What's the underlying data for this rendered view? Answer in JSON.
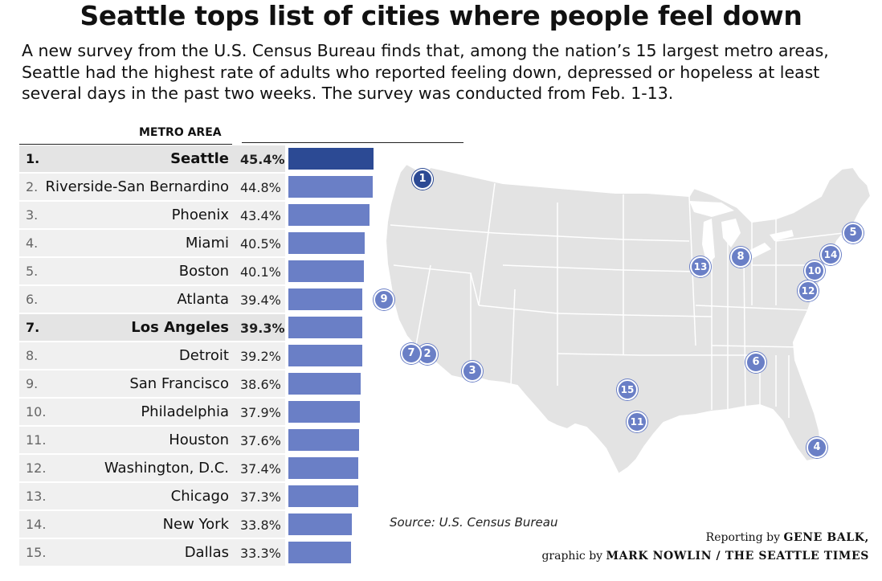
{
  "chart_data": {
    "type": "bar",
    "orientation": "horizontal",
    "title": "Seattle tops list of cities where people feel down",
    "subtitle": "A new survey from the U.S. Census Bureau finds that, among the nation’s 15 largest metro areas, Seattle had the highest rate of adults who reported feeling down, depressed or hopeless at least several days in the past two weeks. The survey was conducted from Feb. 1-13.",
    "column_header": "METRO AREA",
    "xlim": [
      0,
      50
    ],
    "value_unit": "%",
    "rows": [
      {
        "rank": "1.",
        "city": "Seattle",
        "value": 45.4,
        "label": "45.4%",
        "highlight": true,
        "top": true
      },
      {
        "rank": "2.",
        "city": "Riverside-San Bernardino",
        "value": 44.8,
        "label": "44.8%",
        "highlight": false
      },
      {
        "rank": "3.",
        "city": "Phoenix",
        "value": 43.4,
        "label": "43.4%",
        "highlight": false
      },
      {
        "rank": "4.",
        "city": "Miami",
        "value": 40.5,
        "label": "40.5%",
        "highlight": false
      },
      {
        "rank": "5.",
        "city": "Boston",
        "value": 40.1,
        "label": "40.1%",
        "highlight": false
      },
      {
        "rank": "6.",
        "city": "Atlanta",
        "value": 39.4,
        "label": "39.4%",
        "highlight": false
      },
      {
        "rank": "7.",
        "city": "Los Angeles",
        "value": 39.3,
        "label": "39.3%",
        "highlight": true
      },
      {
        "rank": "8.",
        "city": "Detroit",
        "value": 39.2,
        "label": "39.2%",
        "highlight": false
      },
      {
        "rank": "9.",
        "city": "San Francisco",
        "value": 38.6,
        "label": "38.6%",
        "highlight": false
      },
      {
        "rank": "10.",
        "city": "Philadelphia",
        "value": 37.9,
        "label": "37.9%",
        "highlight": false
      },
      {
        "rank": "11.",
        "city": "Houston",
        "value": 37.6,
        "label": "37.6%",
        "highlight": false
      },
      {
        "rank": "12.",
        "city": "Washington, D.C.",
        "value": 37.4,
        "label": "37.4%",
        "highlight": false
      },
      {
        "rank": "13.",
        "city": "Chicago",
        "value": 37.3,
        "label": "37.3%",
        "highlight": false
      },
      {
        "rank": "14.",
        "city": "New York",
        "value": 33.8,
        "label": "33.8%",
        "highlight": false
      },
      {
        "rank": "15.",
        "city": "Dallas",
        "value": 33.3,
        "label": "33.3%",
        "highlight": false
      }
    ],
    "map_markers": [
      {
        "label": "1",
        "city": "Seattle"
      },
      {
        "label": "2",
        "city": "Riverside-San Bernardino"
      },
      {
        "label": "3",
        "city": "Phoenix"
      },
      {
        "label": "4",
        "city": "Miami"
      },
      {
        "label": "5",
        "city": "Boston"
      },
      {
        "label": "6",
        "city": "Atlanta"
      },
      {
        "label": "7",
        "city": "Los Angeles"
      },
      {
        "label": "8",
        "city": "Detroit"
      },
      {
        "label": "9",
        "city": "San Francisco"
      },
      {
        "label": "10",
        "city": "Philadelphia"
      },
      {
        "label": "11",
        "city": "Houston"
      },
      {
        "label": "12",
        "city": "Washington, D.C."
      },
      {
        "label": "13",
        "city": "Chicago"
      },
      {
        "label": "14",
        "city": "New York"
      },
      {
        "label": "15",
        "city": "Dallas"
      }
    ],
    "source": "Source: U.S. Census Bureau",
    "credit_line1_prefix": "Reporting by",
    "credit_line1_name": "GENE BALK,",
    "credit_line2_prefix": "graphic by",
    "credit_line2_name": "MARK NOWLIN / THE SEATTLE TIMES"
  },
  "colors": {
    "bar": "#6a7fc6",
    "bar_top": "#2c4a94",
    "map_fill": "#e3e3e3",
    "map_border": "#ffffff"
  }
}
